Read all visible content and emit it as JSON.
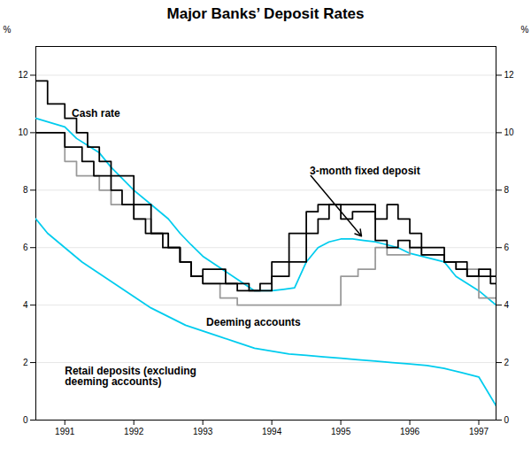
{
  "chart_data": {
    "type": "line",
    "title": "Major Banks’ Deposit Rates",
    "ylabel": "%",
    "y2label": "%",
    "xlim": [
      1990.58,
      1997.25
    ],
    "xticks": [
      1991,
      1992,
      1993,
      1994,
      1995,
      1996,
      1997
    ],
    "ylim": [
      0,
      13
    ],
    "yticks": [
      0,
      2,
      4,
      6,
      8,
      10,
      12
    ],
    "y2lim": [
      0,
      13
    ],
    "y2ticks": [
      0,
      2,
      4,
      6,
      8,
      10,
      12
    ],
    "grid": true,
    "series": [
      {
        "color": "#00ccee",
        "x": [
          1990.58,
          1990.75,
          1991.0,
          1991.25,
          1991.5,
          1991.75,
          1992.0,
          1992.25,
          1992.5,
          1992.75,
          1993.0,
          1993.25,
          1993.5,
          1993.75,
          1994.0,
          1994.25,
          1994.5,
          1994.75,
          1995.0,
          1995.25,
          1995.5,
          1995.75,
          1996.0,
          1996.25,
          1996.5,
          1996.75,
          1997.0,
          1997.25
        ],
        "values": [
          7.0,
          6.5,
          6.0,
          5.5,
          5.1,
          4.7,
          4.3,
          3.9,
          3.6,
          3.3,
          3.1,
          2.9,
          2.7,
          2.5,
          2.4,
          2.3,
          2.25,
          2.2,
          2.15,
          2.1,
          2.05,
          2.0,
          1.95,
          1.9,
          1.8,
          1.65,
          1.5,
          0.5
        ]
      },
      {
        "color": "#00ccee",
        "x": [
          1990.58,
          1991.0,
          1991.17,
          1991.5,
          1991.67,
          1992.0,
          1992.25,
          1992.5,
          1992.67,
          1992.83,
          1993.0,
          1993.25,
          1993.5,
          1993.75,
          1994.0,
          1994.17,
          1994.33,
          1994.5,
          1994.67,
          1994.83,
          1995.0,
          1995.17,
          1995.33,
          1995.5,
          1995.67,
          1995.83,
          1996.0,
          1996.17,
          1996.5,
          1996.67,
          1997.0,
          1997.25
        ],
        "values": [
          10.5,
          10.2,
          9.8,
          9.3,
          8.8,
          8.0,
          7.5,
          7.0,
          6.5,
          6.1,
          5.7,
          5.3,
          4.9,
          4.5,
          4.5,
          4.55,
          4.6,
          5.5,
          6.0,
          6.2,
          6.3,
          6.3,
          6.25,
          6.2,
          6.1,
          6.0,
          5.8,
          5.7,
          5.5,
          5.0,
          4.5,
          4.0
        ]
      },
      {
        "color": "#999999",
        "x": [
          1990.58,
          1991.0,
          1991.0,
          1991.17,
          1991.17,
          1991.5,
          1991.5,
          1991.67,
          1991.67,
          1992.0,
          1992.0,
          1992.25,
          1992.25,
          1992.5,
          1992.5,
          1992.67,
          1992.67,
          1992.83,
          1992.83,
          1993.0,
          1993.0,
          1993.25,
          1993.25,
          1993.5,
          1993.5,
          1995.0,
          1995.0,
          1995.25,
          1995.25,
          1995.5,
          1995.5,
          1995.67,
          1995.67,
          1996.0,
          1996.0,
          1996.17,
          1996.17,
          1996.5,
          1996.5,
          1996.67,
          1996.67,
          1997.0,
          1997.0,
          1997.25
        ],
        "values": [
          10.0,
          10.0,
          9.0,
          9.0,
          8.5,
          8.5,
          8.0,
          8.0,
          7.5,
          7.5,
          7.0,
          7.0,
          6.5,
          6.5,
          6.0,
          6.0,
          5.5,
          5.5,
          5.0,
          5.0,
          4.75,
          4.75,
          4.25,
          4.25,
          4.0,
          4.0,
          5.0,
          5.0,
          5.25,
          5.25,
          6.0,
          6.0,
          5.75,
          5.75,
          6.0,
          6.0,
          5.75,
          5.75,
          5.5,
          5.5,
          5.25,
          5.25,
          4.25,
          4.25
        ]
      },
      {
        "color": "#000000",
        "x": [
          1990.58,
          1991.0,
          1991.0,
          1991.25,
          1991.25,
          1991.42,
          1991.42,
          1991.67,
          1991.67,
          1991.83,
          1991.83,
          1992.0,
          1992.0,
          1992.17,
          1992.17,
          1992.42,
          1992.42,
          1992.67,
          1992.67,
          1992.83,
          1992.83,
          1993.0,
          1993.0,
          1993.5,
          1993.5,
          1993.83,
          1993.83,
          1994.0,
          1994.0,
          1994.25,
          1994.25,
          1994.5,
          1994.5,
          1994.67,
          1994.67,
          1994.83,
          1994.83,
          1995.0,
          1995.0,
          1995.17,
          1995.17,
          1995.5,
          1995.5,
          1995.67,
          1995.67,
          1995.83,
          1995.83,
          1996.0,
          1996.0,
          1996.17,
          1996.17,
          1996.5,
          1996.5,
          1996.67,
          1996.67,
          1996.83,
          1996.83,
          1997.0,
          1997.0,
          1997.17,
          1997.17,
          1997.25
        ],
        "values": [
          10.0,
          10.0,
          9.5,
          9.5,
          9.0,
          9.0,
          8.5,
          8.5,
          8.0,
          8.0,
          7.5,
          7.5,
          7.0,
          7.0,
          6.5,
          6.5,
          6.0,
          6.0,
          5.5,
          5.5,
          5.0,
          5.0,
          4.75,
          4.75,
          4.5,
          4.5,
          4.75,
          4.75,
          5.5,
          5.5,
          6.5,
          6.5,
          7.25,
          7.25,
          7.5,
          7.5,
          7.5,
          7.5,
          7.0,
          7.0,
          7.25,
          7.25,
          6.25,
          6.25,
          6.0,
          6.0,
          6.25,
          6.25,
          6.0,
          6.0,
          5.75,
          5.75,
          5.5,
          5.5,
          5.25,
          5.25,
          5.0,
          5.0,
          5.25,
          5.25,
          4.75,
          4.75
        ]
      },
      {
        "color": "#000000",
        "x": [
          1990.58,
          1990.75,
          1990.75,
          1991.0,
          1991.0,
          1991.17,
          1991.17,
          1991.33,
          1991.33,
          1991.5,
          1991.5,
          1991.67,
          1991.67,
          1992.0,
          1992.0,
          1992.25,
          1992.25,
          1992.5,
          1992.5,
          1992.67,
          1992.67,
          1992.83,
          1992.83,
          1993.0,
          1993.0,
          1993.33,
          1993.33,
          1993.67,
          1993.67,
          1994.0,
          1994.0,
          1994.25,
          1994.25,
          1994.5,
          1994.5,
          1994.67,
          1994.67,
          1994.83,
          1994.83,
          1995.0,
          1995.0,
          1995.5,
          1995.5,
          1995.67,
          1995.67,
          1995.83,
          1995.83,
          1996.0,
          1996.0,
          1996.17,
          1996.17,
          1996.5,
          1996.5,
          1996.83,
          1996.83,
          1997.17,
          1997.17,
          1997.25
        ],
        "values": [
          11.8,
          11.8,
          11.0,
          11.0,
          10.5,
          10.5,
          10.0,
          10.0,
          9.5,
          9.5,
          9.0,
          9.0,
          8.5,
          8.5,
          7.5,
          7.5,
          6.5,
          6.5,
          6.0,
          6.0,
          5.5,
          5.5,
          5.0,
          5.0,
          5.25,
          5.25,
          4.75,
          4.75,
          4.5,
          4.5,
          5.0,
          5.0,
          5.5,
          5.5,
          6.5,
          6.5,
          7.0,
          7.0,
          7.5,
          7.5,
          7.5,
          7.5,
          7.0,
          7.0,
          7.5,
          7.5,
          7.0,
          7.0,
          6.5,
          6.5,
          6.0,
          6.0,
          5.5,
          5.5,
          5.0,
          5.0,
          5.0,
          5.0
        ]
      }
    ],
    "annotations": [
      {
        "text": "Cash rate",
        "x": 1991.1,
        "y": 10.8
      },
      {
        "text": "3-month fixed deposit",
        "x": 1994.55,
        "y": 8.55,
        "arrow_x": 1995.3,
        "arrow_y": 6.4
      },
      {
        "text": "Deeming accounts",
        "x": 1993.05,
        "y": 3.55
      },
      {
        "text": "Retail deposits (excluding\ndeeming accounts)",
        "x": 1991.0,
        "y": 1.85
      }
    ]
  }
}
